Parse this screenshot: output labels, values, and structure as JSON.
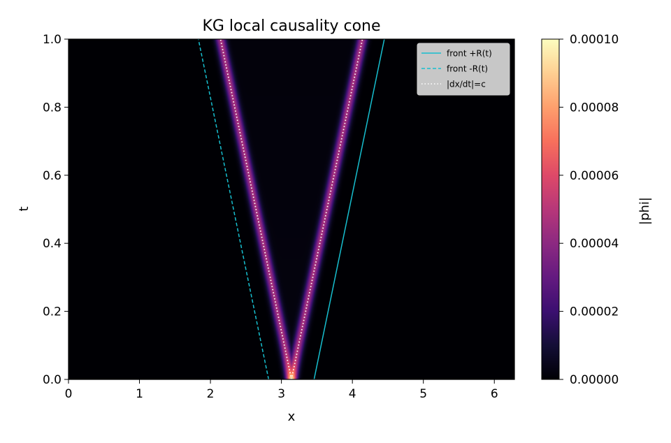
{
  "chart_data": {
    "type": "heatmap",
    "title": "KG local causality cone",
    "xlabel": "x",
    "ylabel": "t",
    "xlim": [
      0,
      6.2832
    ],
    "ylim": [
      0,
      1.0
    ],
    "x_ticks": [
      0,
      1,
      2,
      3,
      4,
      5,
      6
    ],
    "x_tick_labels": [
      "0",
      "1",
      "2",
      "3",
      "4",
      "5",
      "6"
    ],
    "y_ticks": [
      0.0,
      0.2,
      0.4,
      0.6,
      0.8,
      1.0
    ],
    "y_tick_labels": [
      "0.0",
      "0.2",
      "0.4",
      "0.6",
      "0.8",
      "1.0"
    ],
    "colormap": "magma",
    "colorbar": {
      "label": "|phi|",
      "range": [
        0,
        0.0001
      ],
      "ticks": [
        0,
        2e-05,
        4e-05,
        6e-05,
        8e-05,
        0.0001
      ],
      "tick_labels": [
        "0.00000",
        "0.00002",
        "0.00004",
        "0.00006",
        "0.00008",
        "0.00010"
      ]
    },
    "field": {
      "center_x": 3.1416,
      "wave_speed": 1.0,
      "pulse_width": 0.07,
      "peak_value": 0.0001,
      "ridge_value": 4.5e-05,
      "interior_value": 2e-06
    },
    "series": [
      {
        "name": "front +R(t)",
        "style": "solid",
        "color": "#17becf",
        "x": [
          3.46,
          4.45
        ],
        "t": [
          0.0,
          1.0
        ]
      },
      {
        "name": "front -R(t)",
        "style": "dashed",
        "color": "#17becf",
        "x": [
          2.82,
          1.83
        ],
        "t": [
          0.0,
          1.0
        ]
      },
      {
        "name": "|dx/dt|=c",
        "style": "dotted",
        "color": "#ffffff",
        "x_left": [
          3.1416,
          2.1416
        ],
        "x_right": [
          3.1416,
          4.1416
        ],
        "t": [
          0.0,
          1.0
        ]
      }
    ],
    "legend": {
      "position": "top-right",
      "entries": [
        "front +R(t)",
        "front -R(t)",
        "|dx/dt|=c"
      ]
    }
  }
}
